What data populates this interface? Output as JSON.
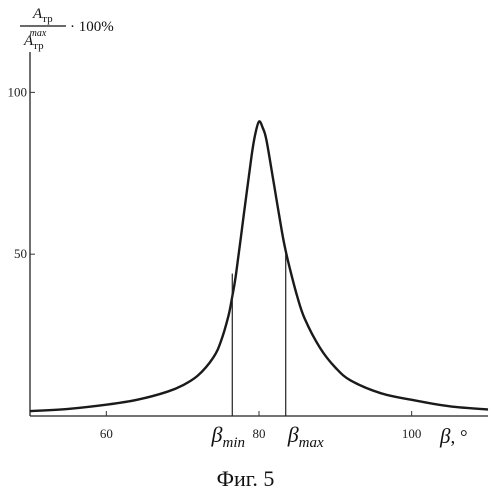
{
  "chart_data": {
    "type": "line",
    "title": "",
    "ylabel": {
      "numerator": "A",
      "numerator_sub": "тр",
      "denominator": "A",
      "denominator_sub": "тр",
      "denominator_sup": "max",
      "suffix": "· 100%"
    },
    "xlabel": {
      "symbol": "β",
      "unit": ", °"
    },
    "xlim": [
      50,
      110
    ],
    "ylim": [
      0,
      110
    ],
    "x_ticks": [
      {
        "value": 60,
        "label": "60"
      },
      {
        "value": 80,
        "label": "80"
      },
      {
        "value": 100,
        "label": "100"
      }
    ],
    "y_ticks": [
      {
        "value": 50,
        "label": "50"
      },
      {
        "value": 100,
        "label": "100"
      }
    ],
    "series": [
      {
        "x": [
          50,
          55,
          60,
          64,
          68,
          70,
          72,
          74,
          75,
          76,
          76.5,
          77,
          78,
          79,
          79.5,
          80,
          80.5,
          81,
          82,
          83,
          83.5,
          84,
          85,
          86,
          88,
          90,
          92,
          96,
          100,
          105,
          110
        ],
        "y": [
          1.5,
          2.2,
          3.5,
          5.0,
          7.5,
          9.5,
          12.5,
          18,
          23,
          31,
          37,
          44,
          62,
          80,
          87,
          91,
          89,
          85,
          71,
          57,
          51,
          46,
          37,
          30,
          21,
          15,
          11,
          7,
          5,
          3,
          2
        ]
      }
    ],
    "markers": [
      {
        "x": 76.5,
        "y": 44,
        "symbol": "β",
        "sub": "min"
      },
      {
        "x": 83.5,
        "y": 50,
        "symbol": "β",
        "sub": "max"
      }
    ]
  },
  "caption": "Фиг. 5"
}
